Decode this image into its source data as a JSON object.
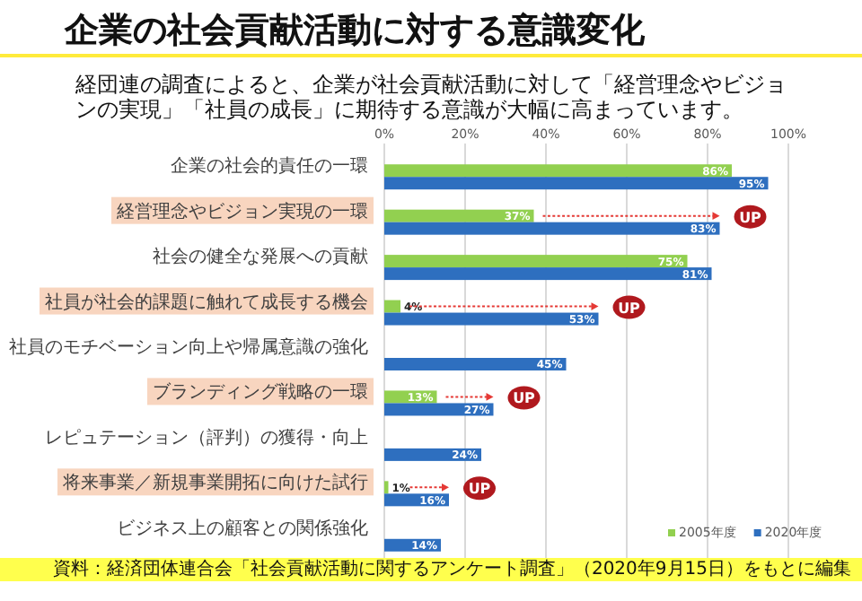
{
  "chart_data": {
    "type": "bar",
    "orientation": "horizontal",
    "title": "企業の社会貢献活動に対する意識変化",
    "subtitle": "経団連の調査によると、企業が社会貢献活動に対して「経営理念やビジョンの実現」「社員の成長」に期待する意識が大幅に高まっています。",
    "categories": [
      "企業の社会的責任の一環",
      "経営理念やビジョン実現の一環",
      "社会の健全な発展への貢献",
      "社員が社会的課題に触れて成長する機会",
      "社員のモチベーション向上や帰属意識の強化",
      "ブランディング戦略の一環",
      "レピュテーション（評判）の獲得・向上",
      "将来事業／新規事業開拓に向けた試行",
      "ビジネス上の顧客との関係強化"
    ],
    "series": [
      {
        "name": "2005年度",
        "color": "#92d050",
        "values": [
          86,
          37,
          75,
          4,
          null,
          13,
          null,
          1,
          null
        ],
        "value_labels": [
          "86%",
          "37%",
          "75%",
          "4%",
          null,
          "13%",
          null,
          "1%",
          null
        ]
      },
      {
        "name": "2020年度",
        "color": "#2e6fbf",
        "values": [
          95,
          83,
          81,
          53,
          45,
          27,
          24,
          16,
          14
        ],
        "value_labels": [
          "95%",
          "83%",
          "81%",
          "53%",
          "45%",
          "27%",
          "24%",
          "16%",
          "14%"
        ]
      }
    ],
    "xlim": [
      0,
      100
    ],
    "xticks": [
      {
        "value": 0,
        "label": "0%"
      },
      {
        "value": 20,
        "label": "20%"
      },
      {
        "value": 40,
        "label": "40%"
      },
      {
        "value": 60,
        "label": "60%"
      },
      {
        "value": 80,
        "label": "80%"
      },
      {
        "value": 100,
        "label": "100%"
      }
    ],
    "grid": "x",
    "legend": "bottom right",
    "annotations": [
      {
        "text": "UP",
        "x": 83,
        "y": "経営理念やビジョン実現の一環"
      },
      {
        "text": "UP",
        "x": 53,
        "y": "社員が社会的課題に触れて成長する機会"
      },
      {
        "text": "UP",
        "x": 27,
        "y": "ブランディング戦略の一環"
      },
      {
        "text": "UP",
        "x": 16,
        "y": "将来事業／新規事業開拓に向けた試行"
      },
      "資料：経済団体連合会「社会貢献活動に関するアンケート調査」（2020年9月15日）をもとに編集"
    ]
  }
}
